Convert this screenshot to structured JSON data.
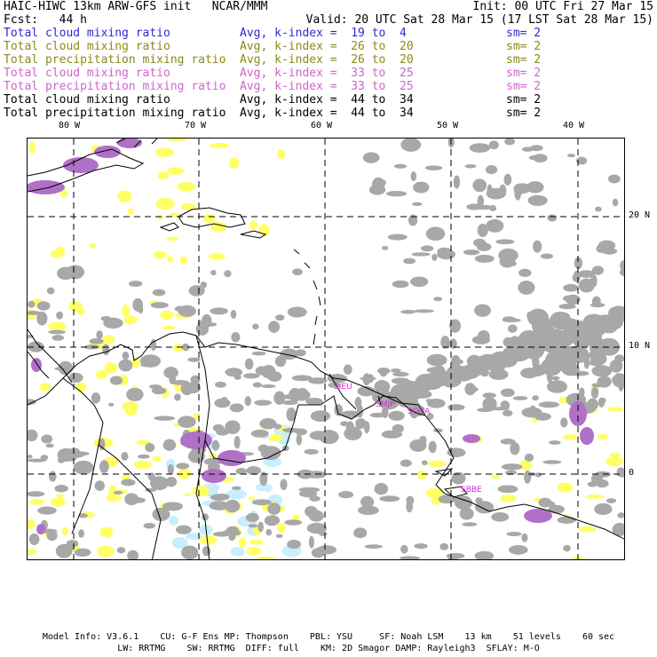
{
  "header": {
    "title": "HAIC-HIWC 13km ARW-GFS init   NCAR/MMM",
    "init": "Init: 00 UTC Fri 27 Mar 15",
    "fcst": "Fcst:   44 h",
    "valid": "Valid: 20 UTC Sat 28 Mar 15 (17 LST Sat 28 Mar 15)"
  },
  "fields": [
    {
      "name": "Total cloud mixing ratio",
      "avg": "Avg, k-index =  19 to  4",
      "sm": "sm= 2",
      "color": "#2b2bd6"
    },
    {
      "name": "Total cloud mixing ratio",
      "avg": "Avg, k-index =  26 to  20",
      "sm": "sm= 2",
      "color": "#8a8a1a"
    },
    {
      "name": "Total precipitation mixing ratio",
      "avg": "Avg, k-index =  26 to  20",
      "sm": "sm= 2",
      "color": "#8a8a1a"
    },
    {
      "name": "Total cloud mixing ratio",
      "avg": "Avg, k-index =  33 to  25",
      "sm": "sm= 2",
      "color": "#cc66cc"
    },
    {
      "name": "Total precipitation mixing ratio",
      "avg": "Avg, k-index =  33 to  25",
      "sm": "sm= 2",
      "color": "#cc66cc"
    },
    {
      "name": "Total cloud mixing ratio",
      "avg": "Avg, k-index =  44 to  34",
      "sm": "sm= 2",
      "color": "#000000"
    },
    {
      "name": "Total precipitation mixing ratio",
      "avg": "Avg, k-index =  44 to  34",
      "sm": "sm= 2",
      "color": "#000000"
    }
  ],
  "map": {
    "lon_labels": [
      "80 W",
      "70 W",
      "60 W",
      "50 W",
      "40 W"
    ],
    "lat_labels": [
      "20 N",
      "10 N",
      "0"
    ],
    "stations": [
      "SIEU",
      "SMJP",
      "SOCA",
      "SBBE"
    ],
    "colors": {
      "gray": "#a8a8a8",
      "yellow": "#ffff66",
      "purple": "#b070c8",
      "cyan": "#c8eeff",
      "station": "#e020e0"
    }
  },
  "footer": {
    "line1": "Model Info: V3.6.1    CU: G-F Ens MP: Thompson    PBL: YSU     SF: Noah LSM    13 km    51 levels    60 sec",
    "line2": "LW: RRTMG    SW: RRTMG  DIFF: full    KM: 2D Smagor DAMP: Rayleigh3  SFLAY: M-O"
  }
}
